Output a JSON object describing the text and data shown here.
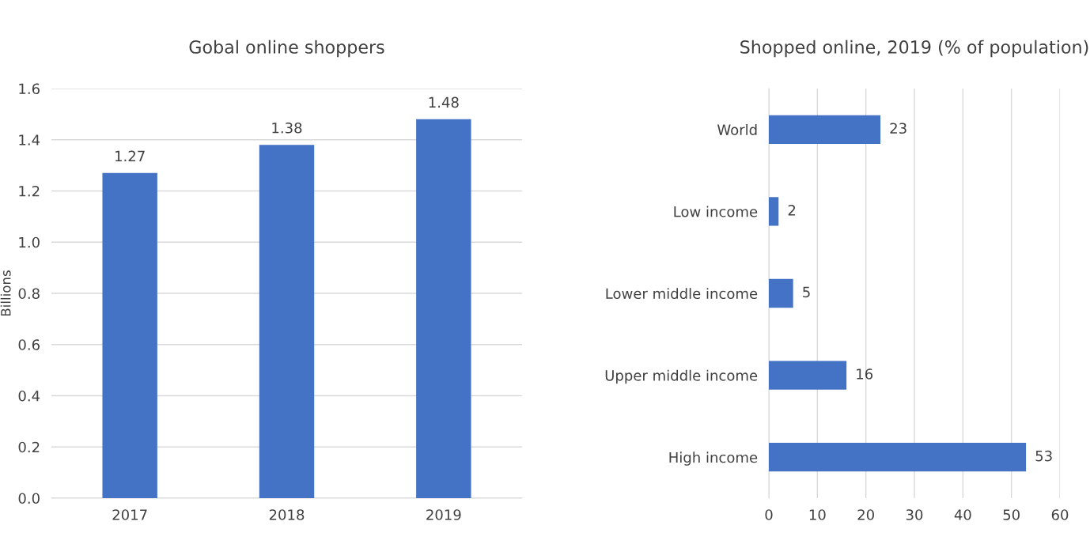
{
  "chart_data": [
    {
      "type": "bar",
      "title": "Gobal online shoppers",
      "ylabel": "Billions",
      "categories": [
        "2017",
        "2018",
        "2019"
      ],
      "values": [
        1.27,
        1.38,
        1.48
      ],
      "color": "#4472c4",
      "ylim": [
        0,
        1.6
      ],
      "yticks": [
        {
          "value": 0,
          "label": "0.0"
        },
        0.2,
        0.4,
        0.6,
        0.8,
        {
          "value": 1,
          "label": "1.0"
        },
        1.2,
        1.4,
        1.6
      ],
      "grid": "y",
      "data_labels": true
    },
    {
      "type": "bar",
      "orientation": "horizontal",
      "title": "Shopped online, 2019 (% of population)",
      "categories": [
        "World",
        "Low income",
        "Lower middle income",
        "Upper middle income",
        "High income"
      ],
      "values": [
        23,
        2,
        5,
        16,
        53
      ],
      "color": "#4472c4",
      "xlim": [
        0,
        60
      ],
      "xticks": [
        0,
        10,
        20,
        30,
        40,
        50,
        60
      ],
      "grid": "x",
      "data_labels": true
    }
  ]
}
